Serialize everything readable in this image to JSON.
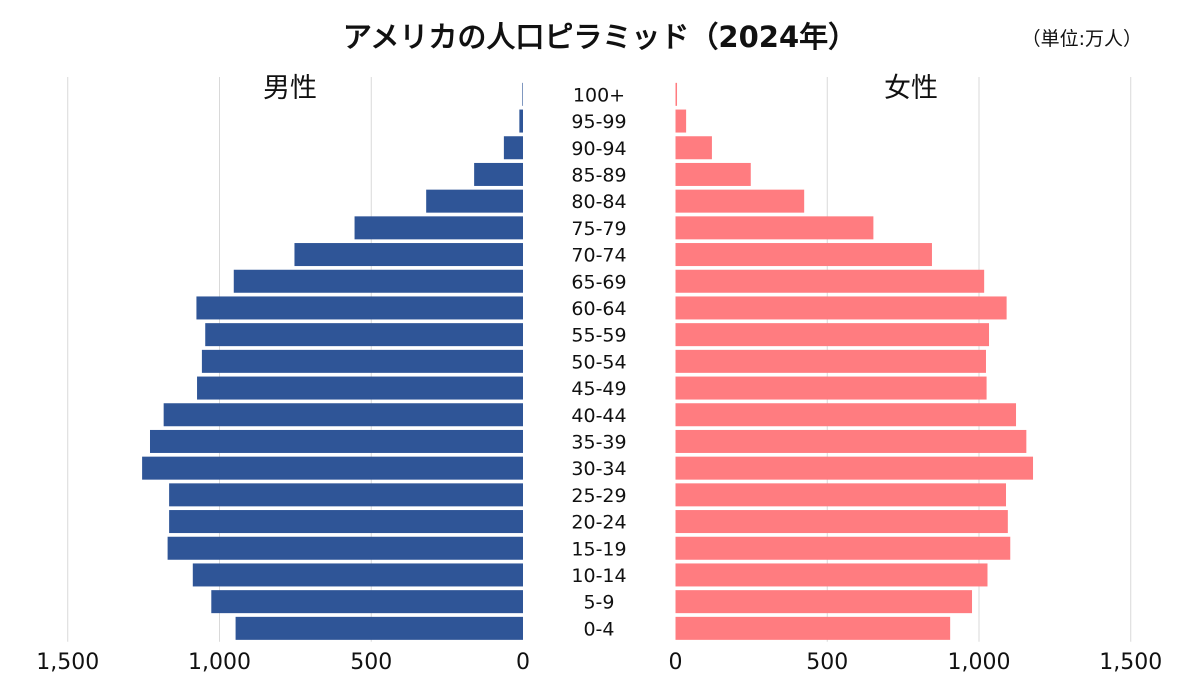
{
  "chart_data": {
    "type": "bar",
    "subtype": "population-pyramid",
    "title": "アメリカの人口ピラミッド（2024年）",
    "unit_label": "（単位:万人）",
    "categories": [
      "100+",
      "95-99",
      "90-94",
      "85-89",
      "80-84",
      "75-79",
      "70-74",
      "65-69",
      "60-64",
      "55-59",
      "50-54",
      "45-49",
      "40-44",
      "35-39",
      "30-34",
      "25-29",
      "20-24",
      "15-19",
      "10-14",
      "5-9",
      "0-4"
    ],
    "series": [
      {
        "name": "男性",
        "color": "#2F5597",
        "values": [
          2,
          12,
          63,
          161,
          319,
          555,
          753,
          953,
          1076,
          1047,
          1058,
          1074,
          1184,
          1229,
          1255,
          1166,
          1166,
          1171,
          1088,
          1027,
          947
        ]
      },
      {
        "name": "女性",
        "color": "#FF7C80",
        "values": [
          5,
          35,
          120,
          248,
          424,
          652,
          845,
          1017,
          1091,
          1033,
          1023,
          1025,
          1122,
          1156,
          1178,
          1089,
          1095,
          1103,
          1028,
          977,
          905
        ]
      }
    ],
    "xlim": [
      0,
      1500
    ],
    "ticks": [
      0,
      500,
      1000,
      1500
    ],
    "tick_labels": [
      "0",
      "500",
      "1,000",
      "1,500"
    ],
    "grid": true,
    "legend": "series names above each half"
  }
}
